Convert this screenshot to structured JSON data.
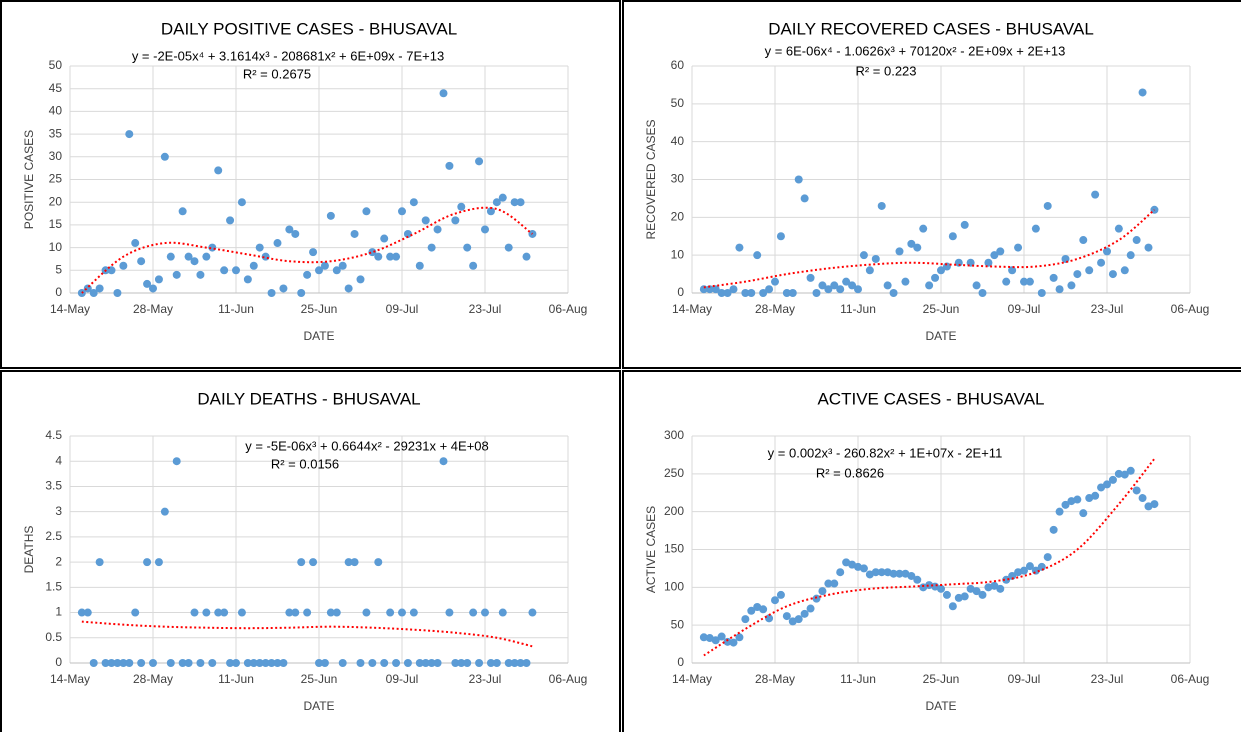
{
  "chart_data": [
    {
      "type": "scatter",
      "title": "DAILY POSITIVE CASES - BHUSAVAL",
      "x_label": "DATE",
      "y_label": "POSITIVE CASES",
      "x": [
        "16-May",
        "17-May",
        "18-May",
        "19-May",
        "20-May",
        "21-May",
        "22-May",
        "23-May",
        "24-May",
        "25-May",
        "26-May",
        "27-May",
        "28-May",
        "29-May",
        "30-May",
        "31-May",
        "01-Jun",
        "02-Jun",
        "03-Jun",
        "04-Jun",
        "05-Jun",
        "06-Jun",
        "07-Jun",
        "08-Jun",
        "09-Jun",
        "10-Jun",
        "11-Jun",
        "12-Jun",
        "13-Jun",
        "14-Jun",
        "15-Jun",
        "16-Jun",
        "17-Jun",
        "18-Jun",
        "19-Jun",
        "20-Jun",
        "21-Jun",
        "22-Jun",
        "23-Jun",
        "24-Jun",
        "25-Jun",
        "26-Jun",
        "27-Jun",
        "28-Jun",
        "29-Jun",
        "30-Jun",
        "01-Jul",
        "02-Jul",
        "03-Jul",
        "04-Jul",
        "05-Jul",
        "06-Jul",
        "07-Jul",
        "08-Jul",
        "09-Jul",
        "10-Jul",
        "11-Jul",
        "12-Jul",
        "13-Jul",
        "14-Jul",
        "15-Jul",
        "16-Jul",
        "17-Jul",
        "18-Jul",
        "19-Jul",
        "20-Jul",
        "21-Jul",
        "22-Jul",
        "23-Jul",
        "24-Jul",
        "25-Jul",
        "26-Jul",
        "27-Jul",
        "28-Jul",
        "29-Jul",
        "30-Jul",
        "31-Jul"
      ],
      "values": [
        0,
        1,
        0,
        1,
        5,
        5,
        0,
        6,
        35,
        11,
        7,
        2,
        1,
        3,
        30,
        8,
        4,
        18,
        8,
        7,
        4,
        8,
        10,
        27,
        5,
        16,
        5,
        20,
        3,
        6,
        10,
        8,
        0,
        11,
        1,
        14,
        13,
        0,
        4,
        9,
        5,
        6,
        17,
        5,
        6,
        1,
        13,
        3,
        18,
        9,
        8,
        12,
        8,
        8,
        18,
        13,
        20,
        6,
        16,
        10,
        14,
        44,
        28,
        16,
        19,
        10,
        6,
        29,
        14,
        18,
        20,
        21,
        10,
        20,
        20,
        8,
        13
      ],
      "color": "#5b9bd5",
      "xlim": [
        "14-May",
        "06-Aug"
      ],
      "xticks": [
        "14-May",
        "28-May",
        "11-Jun",
        "25-Jun",
        "09-Jul",
        "23-Jul",
        "06-Aug"
      ],
      "ylim": [
        0,
        50
      ],
      "yticks": [
        0,
        5,
        10,
        15,
        20,
        25,
        30,
        35,
        40,
        45,
        50
      ],
      "grid": true,
      "trendline": {
        "x": [
          "16-May",
          "23-May",
          "30-May",
          "06-Jun",
          "13-Jun",
          "20-Jun",
          "27-Jun",
          "04-Jul",
          "11-Jul",
          "18-Jul",
          "25-Jul",
          "31-Jul"
        ],
        "values": [
          0,
          8,
          11,
          10,
          8.5,
          7,
          7,
          9,
          13,
          17.5,
          18.5,
          13
        ],
        "color": "#ff0000",
        "equation": "y = -2E-05x⁴ + 3.1614x³ - 208681x² + 6E+09x - 7E+13",
        "r_squared": "R² = 0.2675"
      }
    },
    {
      "type": "scatter",
      "title": "DAILY RECOVERED CASES - BHUSAVAL",
      "x_label": "DATE",
      "y_label": "RECOVERED CASES",
      "x": [
        "16-May",
        "17-May",
        "18-May",
        "19-May",
        "20-May",
        "21-May",
        "22-May",
        "23-May",
        "24-May",
        "25-May",
        "26-May",
        "27-May",
        "28-May",
        "29-May",
        "30-May",
        "31-May",
        "01-Jun",
        "02-Jun",
        "03-Jun",
        "04-Jun",
        "05-Jun",
        "06-Jun",
        "07-Jun",
        "08-Jun",
        "09-Jun",
        "10-Jun",
        "11-Jun",
        "12-Jun",
        "13-Jun",
        "14-Jun",
        "15-Jun",
        "16-Jun",
        "17-Jun",
        "18-Jun",
        "19-Jun",
        "20-Jun",
        "21-Jun",
        "22-Jun",
        "23-Jun",
        "24-Jun",
        "25-Jun",
        "26-Jun",
        "27-Jun",
        "28-Jun",
        "29-Jun",
        "30-Jun",
        "01-Jul",
        "02-Jul",
        "03-Jul",
        "04-Jul",
        "05-Jul",
        "06-Jul",
        "07-Jul",
        "08-Jul",
        "09-Jul",
        "10-Jul",
        "11-Jul",
        "12-Jul",
        "13-Jul",
        "14-Jul",
        "15-Jul",
        "16-Jul",
        "17-Jul",
        "18-Jul",
        "19-Jul",
        "20-Jul",
        "21-Jul",
        "22-Jul",
        "23-Jul",
        "24-Jul",
        "25-Jul",
        "26-Jul",
        "27-Jul",
        "28-Jul",
        "29-Jul",
        "30-Jul",
        "31-Jul"
      ],
      "values": [
        1,
        1,
        1,
        0,
        0,
        1,
        12,
        0,
        0,
        10,
        0,
        1,
        3,
        15,
        0,
        0,
        30,
        25,
        4,
        0,
        2,
        1,
        2,
        1,
        3,
        2,
        1,
        10,
        6,
        9,
        23,
        2,
        0,
        11,
        3,
        13,
        12,
        17,
        2,
        4,
        6,
        7,
        15,
        8,
        18,
        8,
        2,
        0,
        8,
        10,
        11,
        3,
        6,
        12,
        3,
        3,
        17,
        0,
        23,
        4,
        1,
        9,
        2,
        5,
        14,
        6,
        26,
        8,
        11,
        5,
        17,
        6,
        10,
        14,
        53,
        12,
        22
      ],
      "color": "#5b9bd5",
      "xlim": [
        "14-May",
        "06-Aug"
      ],
      "xticks": [
        "14-May",
        "28-May",
        "11-Jun",
        "25-Jun",
        "09-Jul",
        "23-Jul",
        "06-Aug"
      ],
      "ylim": [
        0,
        60
      ],
      "yticks": [
        0,
        10,
        20,
        30,
        40,
        50,
        60
      ],
      "grid": true,
      "trendline": {
        "x": [
          "16-May",
          "23-May",
          "30-May",
          "06-Jun",
          "13-Jun",
          "20-Jun",
          "27-Jun",
          "04-Jul",
          "11-Jul",
          "18-Jul",
          "25-Jul",
          "31-Jul"
        ],
        "values": [
          1.5,
          3,
          5,
          6.5,
          7.5,
          8,
          7.5,
          7,
          7,
          9,
          14,
          22
        ],
        "color": "#ff0000",
        "equation": "y = 6E-06x⁴ - 1.0626x³ + 70120x² - 2E+09x + 2E+13",
        "r_squared": "R² = 0.223"
      }
    },
    {
      "type": "scatter",
      "title": "DAILY DEATHS - BHUSAVAL",
      "x_label": "DATE",
      "y_label": "DEATHS",
      "x": [
        "16-May",
        "17-May",
        "18-May",
        "19-May",
        "20-May",
        "21-May",
        "22-May",
        "23-May",
        "24-May",
        "25-May",
        "26-May",
        "27-May",
        "28-May",
        "29-May",
        "30-May",
        "31-May",
        "01-Jun",
        "02-Jun",
        "03-Jun",
        "04-Jun",
        "05-Jun",
        "06-Jun",
        "07-Jun",
        "08-Jun",
        "09-Jun",
        "10-Jun",
        "11-Jun",
        "12-Jun",
        "13-Jun",
        "14-Jun",
        "15-Jun",
        "16-Jun",
        "17-Jun",
        "18-Jun",
        "19-Jun",
        "20-Jun",
        "21-Jun",
        "22-Jun",
        "23-Jun",
        "24-Jun",
        "25-Jun",
        "26-Jun",
        "27-Jun",
        "28-Jun",
        "29-Jun",
        "30-Jun",
        "01-Jul",
        "02-Jul",
        "03-Jul",
        "04-Jul",
        "05-Jul",
        "06-Jul",
        "07-Jul",
        "08-Jul",
        "09-Jul",
        "10-Jul",
        "11-Jul",
        "12-Jul",
        "13-Jul",
        "14-Jul",
        "15-Jul",
        "16-Jul",
        "17-Jul",
        "18-Jul",
        "19-Jul",
        "20-Jul",
        "21-Jul",
        "22-Jul",
        "23-Jul",
        "24-Jul",
        "25-Jul",
        "26-Jul",
        "27-Jul",
        "28-Jul",
        "29-Jul",
        "30-Jul",
        "31-Jul"
      ],
      "values": [
        1,
        1,
        0,
        2,
        0,
        0,
        0,
        0,
        0,
        1,
        0,
        2,
        0,
        2,
        3,
        0,
        4,
        0,
        0,
        1,
        0,
        1,
        0,
        1,
        1,
        0,
        0,
        1,
        0,
        0,
        0,
        0,
        0,
        0,
        0,
        1,
        1,
        2,
        1,
        2,
        0,
        0,
        1,
        1,
        0,
        2,
        2,
        0,
        1,
        0,
        2,
        0,
        1,
        0,
        1,
        0,
        1,
        0,
        0,
        0,
        0,
        4,
        1,
        0,
        0,
        0,
        1,
        0,
        1,
        0,
        0,
        1,
        0,
        0,
        0,
        0,
        1
      ],
      "color": "#5b9bd5",
      "xlim": [
        "14-May",
        "06-Aug"
      ],
      "xticks": [
        "14-May",
        "28-May",
        "11-Jun",
        "25-Jun",
        "09-Jul",
        "23-Jul",
        "06-Aug"
      ],
      "ylim": [
        0,
        4.5
      ],
      "yticks": [
        0,
        0.5,
        1,
        1.5,
        2,
        2.5,
        3,
        3.5,
        4,
        4.5
      ],
      "grid": true,
      "trendline": {
        "x": [
          "16-May",
          "23-May",
          "30-May",
          "06-Jun",
          "13-Jun",
          "20-Jun",
          "27-Jun",
          "04-Jul",
          "11-Jul",
          "18-Jul",
          "25-Jul",
          "31-Jul"
        ],
        "values": [
          0.82,
          0.76,
          0.72,
          0.7,
          0.69,
          0.7,
          0.72,
          0.7,
          0.66,
          0.6,
          0.5,
          0.33
        ],
        "color": "#ff0000",
        "equation": "y = -5E-06x³ + 0.6644x² - 29231x + 4E+08",
        "r_squared": "R² = 0.0156"
      }
    },
    {
      "type": "scatter",
      "title": "ACTIVE CASES - BHUSAVAL",
      "x_label": "DATE",
      "y_label": "ACTIVE  CASES",
      "x": [
        "16-May",
        "17-May",
        "18-May",
        "19-May",
        "20-May",
        "21-May",
        "22-May",
        "23-May",
        "24-May",
        "25-May",
        "26-May",
        "27-May",
        "28-May",
        "29-May",
        "30-May",
        "31-May",
        "01-Jun",
        "02-Jun",
        "03-Jun",
        "04-Jun",
        "05-Jun",
        "06-Jun",
        "07-Jun",
        "08-Jun",
        "09-Jun",
        "10-Jun",
        "11-Jun",
        "12-Jun",
        "13-Jun",
        "14-Jun",
        "15-Jun",
        "16-Jun",
        "17-Jun",
        "18-Jun",
        "19-Jun",
        "20-Jun",
        "21-Jun",
        "22-Jun",
        "23-Jun",
        "24-Jun",
        "25-Jun",
        "26-Jun",
        "27-Jun",
        "28-Jun",
        "29-Jun",
        "30-Jun",
        "01-Jul",
        "02-Jul",
        "03-Jul",
        "04-Jul",
        "05-Jul",
        "06-Jul",
        "07-Jul",
        "08-Jul",
        "09-Jul",
        "10-Jul",
        "11-Jul",
        "12-Jul",
        "13-Jul",
        "14-Jul",
        "15-Jul",
        "16-Jul",
        "17-Jul",
        "18-Jul",
        "19-Jul",
        "20-Jul",
        "21-Jul",
        "22-Jul",
        "23-Jul",
        "24-Jul",
        "25-Jul",
        "26-Jul",
        "27-Jul",
        "28-Jul",
        "29-Jul",
        "30-Jul",
        "31-Jul"
      ],
      "values": [
        34,
        33,
        30,
        35,
        28,
        27,
        34,
        58,
        69,
        74,
        71,
        59,
        83,
        90,
        62,
        55,
        58,
        65,
        72,
        85,
        95,
        105,
        105,
        120,
        133,
        130,
        127,
        125,
        117,
        120,
        120,
        120,
        118,
        118,
        118,
        115,
        110,
        100,
        103,
        101,
        98,
        90,
        75,
        86,
        88,
        98,
        95,
        90,
        100,
        102,
        98,
        110,
        115,
        120,
        122,
        128,
        122,
        127,
        140,
        176,
        200,
        209,
        214,
        216,
        198,
        218,
        221,
        232,
        236,
        242,
        250,
        249,
        254,
        228,
        218,
        207,
        210
      ],
      "color": "#5b9bd5",
      "xlim": [
        "14-May",
        "06-Aug"
      ],
      "xticks": [
        "14-May",
        "28-May",
        "11-Jun",
        "25-Jun",
        "09-Jul",
        "23-Jul",
        "06-Aug"
      ],
      "ylim": [
        0,
        300
      ],
      "yticks": [
        0,
        50,
        100,
        150,
        200,
        250,
        300
      ],
      "grid": true,
      "trendline": {
        "x": [
          "16-May",
          "23-May",
          "30-May",
          "06-Jun",
          "13-Jun",
          "20-Jun",
          "27-Jun",
          "04-Jul",
          "11-Jul",
          "18-Jul",
          "25-Jul",
          "31-Jul"
        ],
        "values": [
          10,
          45,
          75,
          90,
          98,
          101,
          104,
          108,
          120,
          150,
          210,
          270
        ],
        "color": "#ff0000",
        "equation": "y = 0.002x³ - 260.82x² + 1E+07x - 2E+11",
        "r_squared": "R² = 0.8626"
      }
    }
  ]
}
